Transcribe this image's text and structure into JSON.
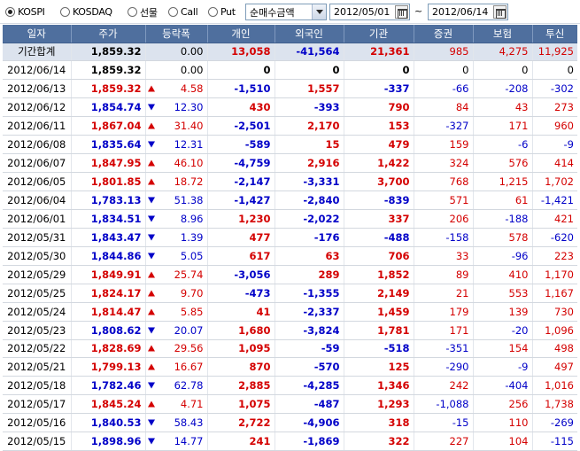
{
  "toolbar": {
    "markets": [
      {
        "label": "KOSPI",
        "selected": true
      },
      {
        "label": "KOSDAQ",
        "selected": false
      },
      {
        "label": "선물",
        "selected": false
      },
      {
        "label": "Call",
        "selected": false
      },
      {
        "label": "Put",
        "selected": false
      }
    ],
    "amount_type": "순매수금액",
    "date_from": "2012/05/01",
    "date_to": "2012/06/14",
    "tilde": "~"
  },
  "colors": {
    "header_bg": "#4f6f9e",
    "summary_bg": "#dce3ee",
    "up": "#d40000",
    "down": "#0000c8"
  },
  "table": {
    "columns": [
      "일자",
      "주가",
      "등락폭",
      "개인",
      "외국인",
      "기관",
      "증권",
      "보험",
      "투신"
    ],
    "rows": [
      {
        "date": "기간합계",
        "price": "1,859.32",
        "dir": "none",
        "chg": "0.00",
        "indiv": "13,058",
        "foreign": "-41,564",
        "inst": "21,361",
        "sec": "985",
        "ins": "4,275",
        "trust": "11,925"
      },
      {
        "date": "2012/06/14",
        "price": "1,859.32",
        "dir": "none",
        "chg": "0.00",
        "indiv": "0",
        "foreign": "0",
        "inst": "0",
        "sec": "0",
        "ins": "0",
        "trust": "0"
      },
      {
        "date": "2012/06/13",
        "price": "1,859.32",
        "dir": "up",
        "chg": "4.58",
        "indiv": "-1,510",
        "foreign": "1,557",
        "inst": "-337",
        "sec": "-66",
        "ins": "-208",
        "trust": "-302"
      },
      {
        "date": "2012/06/12",
        "price": "1,854.74",
        "dir": "down",
        "chg": "12.30",
        "indiv": "430",
        "foreign": "-393",
        "inst": "790",
        "sec": "84",
        "ins": "43",
        "trust": "273"
      },
      {
        "date": "2012/06/11",
        "price": "1,867.04",
        "dir": "up",
        "chg": "31.40",
        "indiv": "-2,501",
        "foreign": "2,170",
        "inst": "153",
        "sec": "-327",
        "ins": "171",
        "trust": "960"
      },
      {
        "date": "2012/06/08",
        "price": "1,835.64",
        "dir": "down",
        "chg": "12.31",
        "indiv": "-589",
        "foreign": "15",
        "inst": "479",
        "sec": "159",
        "ins": "-6",
        "trust": "-9"
      },
      {
        "date": "2012/06/07",
        "price": "1,847.95",
        "dir": "up",
        "chg": "46.10",
        "indiv": "-4,759",
        "foreign": "2,916",
        "inst": "1,422",
        "sec": "324",
        "ins": "576",
        "trust": "414"
      },
      {
        "date": "2012/06/05",
        "price": "1,801.85",
        "dir": "up",
        "chg": "18.72",
        "indiv": "-2,147",
        "foreign": "-3,331",
        "inst": "3,700",
        "sec": "768",
        "ins": "1,215",
        "trust": "1,702"
      },
      {
        "date": "2012/06/04",
        "price": "1,783.13",
        "dir": "down",
        "chg": "51.38",
        "indiv": "-1,427",
        "foreign": "-2,840",
        "inst": "-839",
        "sec": "571",
        "ins": "61",
        "trust": "-1,421"
      },
      {
        "date": "2012/06/01",
        "price": "1,834.51",
        "dir": "down",
        "chg": "8.96",
        "indiv": "1,230",
        "foreign": "-2,022",
        "inst": "337",
        "sec": "206",
        "ins": "-188",
        "trust": "421"
      },
      {
        "date": "2012/05/31",
        "price": "1,843.47",
        "dir": "down",
        "chg": "1.39",
        "indiv": "477",
        "foreign": "-176",
        "inst": "-488",
        "sec": "-158",
        "ins": "578",
        "trust": "-620"
      },
      {
        "date": "2012/05/30",
        "price": "1,844.86",
        "dir": "down",
        "chg": "5.05",
        "indiv": "617",
        "foreign": "63",
        "inst": "706",
        "sec": "33",
        "ins": "-96",
        "trust": "223"
      },
      {
        "date": "2012/05/29",
        "price": "1,849.91",
        "dir": "up",
        "chg": "25.74",
        "indiv": "-3,056",
        "foreign": "289",
        "inst": "1,852",
        "sec": "89",
        "ins": "410",
        "trust": "1,170"
      },
      {
        "date": "2012/05/25",
        "price": "1,824.17",
        "dir": "up",
        "chg": "9.70",
        "indiv": "-473",
        "foreign": "-1,355",
        "inst": "2,149",
        "sec": "21",
        "ins": "553",
        "trust": "1,167"
      },
      {
        "date": "2012/05/24",
        "price": "1,814.47",
        "dir": "up",
        "chg": "5.85",
        "indiv": "41",
        "foreign": "-2,337",
        "inst": "1,459",
        "sec": "179",
        "ins": "139",
        "trust": "730"
      },
      {
        "date": "2012/05/23",
        "price": "1,808.62",
        "dir": "down",
        "chg": "20.07",
        "indiv": "1,680",
        "foreign": "-3,824",
        "inst": "1,781",
        "sec": "171",
        "ins": "-20",
        "trust": "1,096"
      },
      {
        "date": "2012/05/22",
        "price": "1,828.69",
        "dir": "up",
        "chg": "29.56",
        "indiv": "1,095",
        "foreign": "-59",
        "inst": "-518",
        "sec": "-351",
        "ins": "154",
        "trust": "498"
      },
      {
        "date": "2012/05/21",
        "price": "1,799.13",
        "dir": "up",
        "chg": "16.67",
        "indiv": "870",
        "foreign": "-570",
        "inst": "125",
        "sec": "-290",
        "ins": "-9",
        "trust": "497"
      },
      {
        "date": "2012/05/18",
        "price": "1,782.46",
        "dir": "down",
        "chg": "62.78",
        "indiv": "2,885",
        "foreign": "-4,285",
        "inst": "1,346",
        "sec": "242",
        "ins": "-404",
        "trust": "1,016"
      },
      {
        "date": "2012/05/17",
        "price": "1,845.24",
        "dir": "up",
        "chg": "4.71",
        "indiv": "1,075",
        "foreign": "-487",
        "inst": "1,293",
        "sec": "-1,088",
        "ins": "256",
        "trust": "1,738"
      },
      {
        "date": "2012/05/16",
        "price": "1,840.53",
        "dir": "down",
        "chg": "58.43",
        "indiv": "2,722",
        "foreign": "-4,906",
        "inst": "318",
        "sec": "-15",
        "ins": "110",
        "trust": "-269"
      },
      {
        "date": "2012/05/15",
        "price": "1,898.96",
        "dir": "down",
        "chg": "14.77",
        "indiv": "241",
        "foreign": "-1,869",
        "inst": "322",
        "sec": "227",
        "ins": "104",
        "trust": "-115"
      }
    ]
  }
}
